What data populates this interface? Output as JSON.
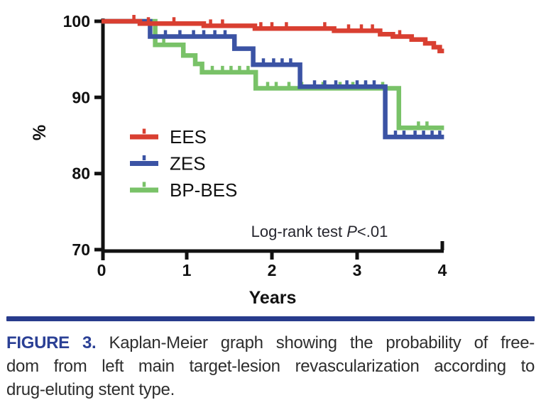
{
  "caption": {
    "label": "FIGURE 3.",
    "line1_rest": "Kaplan-Meier graph showing the probability of free-",
    "line2": "dom from left main target-lesion revascularization according to",
    "line3": "drug-eluting stent type.",
    "label_color": "#2b4095",
    "rule_color": "#283b8c",
    "body_color": "#2e2e2e"
  },
  "chart_data": {
    "type": "line",
    "subtype": "kaplan-meier-step",
    "title": "",
    "xlabel": "Years",
    "ylabel": "%",
    "xlim": [
      0,
      4
    ],
    "ylim": [
      70,
      100
    ],
    "xticks": [
      0,
      1,
      2,
      3,
      4
    ],
    "yticks": [
      100,
      90,
      80,
      70
    ],
    "grid": false,
    "legend_position": "inside-left-middle",
    "annotation": {
      "pre": "Log-rank test ",
      "italic": "P",
      "post": "<.01",
      "color": "#26262e"
    },
    "axis_color": "#111111",
    "series": [
      {
        "name": "EES",
        "color": "#d93f31",
        "points": [
          [
            0,
            100
          ],
          [
            0.45,
            99.7
          ],
          [
            1.2,
            99.4
          ],
          [
            1.8,
            99.05
          ],
          [
            2.73,
            98.75
          ],
          [
            3.27,
            98.3
          ],
          [
            3.42,
            98.0
          ],
          [
            3.64,
            97.6
          ],
          [
            3.8,
            97.1
          ],
          [
            3.9,
            96.6
          ],
          [
            3.97,
            96.1
          ],
          [
            4.02,
            96.1
          ]
        ],
        "censors": [
          0.38,
          0.55,
          0.85,
          1.28,
          1.42,
          1.87,
          2.0,
          2.17,
          2.62,
          2.9,
          3.05,
          3.18,
          3.5
        ]
      },
      {
        "name": "ZES",
        "color": "#3b53a4",
        "points": [
          [
            0,
            100
          ],
          [
            0.57,
            98.0
          ],
          [
            1.56,
            96.4
          ],
          [
            1.78,
            94.3
          ],
          [
            2.33,
            91.4
          ],
          [
            3.33,
            84.8
          ],
          [
            4.02,
            84.8
          ]
        ],
        "censors": [
          0.75,
          0.92,
          1.08,
          1.2,
          1.33,
          1.45,
          1.9,
          2.02,
          2.12,
          2.22,
          2.5,
          2.62,
          2.75,
          2.88,
          3.0,
          3.1,
          3.2,
          3.45,
          3.55,
          3.68,
          3.78,
          3.88,
          3.97
        ]
      },
      {
        "name": "BP-BES",
        "color": "#79c268",
        "points": [
          [
            0,
            100
          ],
          [
            0.63,
            96.9
          ],
          [
            0.96,
            95.5
          ],
          [
            1.1,
            94.4
          ],
          [
            1.18,
            93.3
          ],
          [
            1.81,
            91.2
          ],
          [
            3.49,
            86.0
          ],
          [
            4.02,
            86.0
          ]
        ],
        "censors": [
          0.73,
          1.3,
          1.42,
          1.52,
          1.62,
          1.72,
          1.95,
          2.05,
          2.2,
          2.35,
          2.6,
          2.8,
          2.95,
          3.1,
          3.3,
          3.72,
          3.82
        ]
      }
    ]
  }
}
